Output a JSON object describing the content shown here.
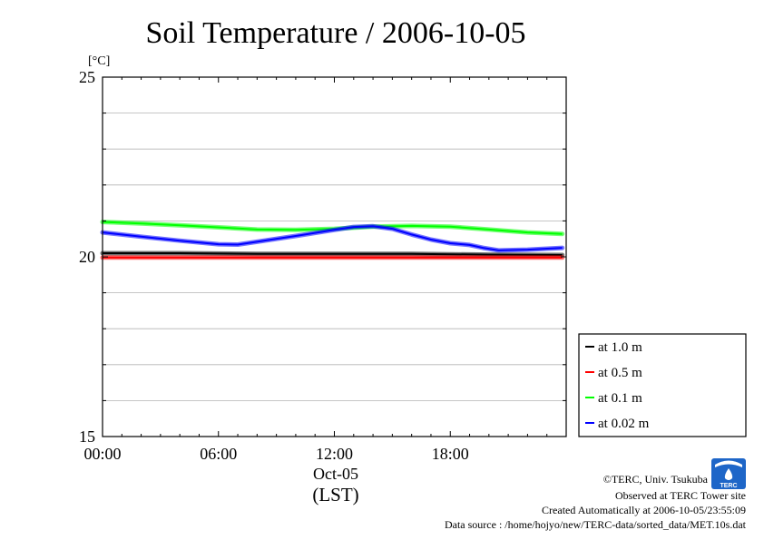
{
  "chart_data": {
    "type": "line",
    "title": "Soil Temperature / 2006-10-05",
    "y_unit": "[°C]",
    "ylim": [
      15,
      25
    ],
    "y_ticks": [
      15,
      20,
      25
    ],
    "y_minor_step": 1,
    "x_range_hours": [
      0,
      24
    ],
    "x_ticks": [
      {
        "hour": 0,
        "label": "00:00"
      },
      {
        "hour": 6,
        "label": "06:00"
      },
      {
        "hour": 12,
        "label": "12:00"
      },
      {
        "hour": 18,
        "label": "18:00"
      }
    ],
    "x_sublabel": "Oct-05",
    "x_timezone_label": "(LST)",
    "grid": true,
    "legend_position": "lower-right, outside plot",
    "series": [
      {
        "name": "at 1.0 m",
        "color": "#000000",
        "points": [
          [
            0,
            20.1
          ],
          [
            4,
            20.1
          ],
          [
            8,
            20.08
          ],
          [
            12,
            20.08
          ],
          [
            16,
            20.08
          ],
          [
            20,
            20.06
          ],
          [
            23.8,
            20.05
          ]
        ]
      },
      {
        "name": "at 0.5 m",
        "color": "#ff0000",
        "points": [
          [
            0,
            19.98
          ],
          [
            4,
            19.98
          ],
          [
            8,
            19.98
          ],
          [
            12,
            19.98
          ],
          [
            16,
            19.98
          ],
          [
            20,
            19.98
          ],
          [
            23.8,
            19.98
          ]
        ]
      },
      {
        "name": "at 0.1 m",
        "color": "#00ff00",
        "points": [
          [
            0,
            20.97
          ],
          [
            2,
            20.93
          ],
          [
            4,
            20.88
          ],
          [
            6,
            20.82
          ],
          [
            8,
            20.76
          ],
          [
            10,
            20.75
          ],
          [
            12,
            20.78
          ],
          [
            14,
            20.84
          ],
          [
            16,
            20.86
          ],
          [
            18,
            20.84
          ],
          [
            20,
            20.76
          ],
          [
            22,
            20.68
          ],
          [
            23.8,
            20.64
          ]
        ]
      },
      {
        "name": "at 0.02 m",
        "color": "#0000ff",
        "points": [
          [
            0,
            20.68
          ],
          [
            2,
            20.56
          ],
          [
            4,
            20.45
          ],
          [
            6,
            20.35
          ],
          [
            7,
            20.34
          ],
          [
            8,
            20.42
          ],
          [
            10,
            20.58
          ],
          [
            12,
            20.75
          ],
          [
            13,
            20.83
          ],
          [
            14,
            20.85
          ],
          [
            15,
            20.78
          ],
          [
            16,
            20.62
          ],
          [
            17,
            20.48
          ],
          [
            18,
            20.38
          ],
          [
            19,
            20.33
          ],
          [
            19.7,
            20.25
          ],
          [
            20.5,
            20.18
          ],
          [
            22,
            20.2
          ],
          [
            23.8,
            20.25
          ]
        ]
      }
    ]
  },
  "footer": {
    "credit": "©TERC, Univ. Tsukuba",
    "site": "Observed at TERC Tower site",
    "created": "Created Automatically at 2006-10-05/23:55:09",
    "source": "Data source : /home/hojyo/new/TERC-data/sorted_data/MET.10s.dat"
  },
  "logo": {
    "text": "TERC",
    "color": "#1e66c8",
    "icon": "terc-logo-icon"
  }
}
